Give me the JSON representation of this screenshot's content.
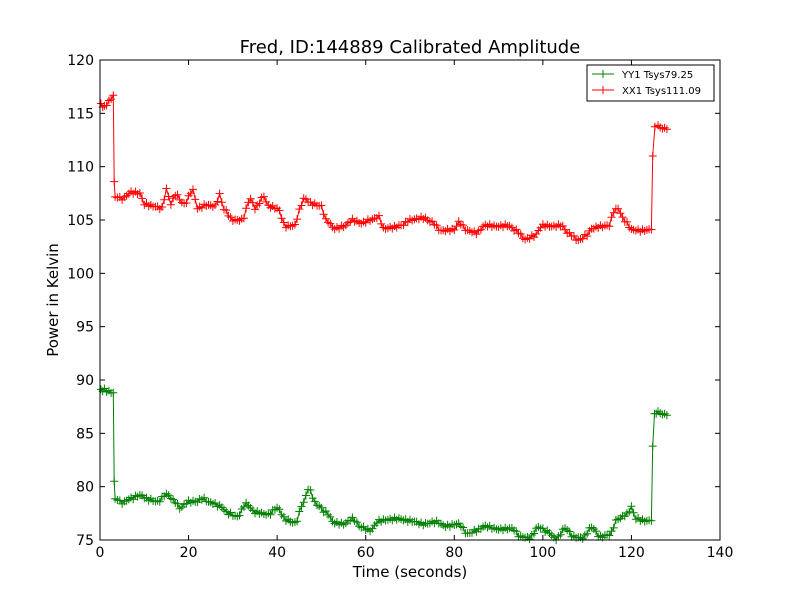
{
  "chart_data": {
    "type": "line",
    "title": "Fred, ID:144889 Calibrated Amplitude",
    "xlabel": "Time (seconds)",
    "ylabel": "Power in Kelvin",
    "xlim": [
      0,
      140
    ],
    "ylim": [
      75,
      120
    ],
    "xticks": [
      0,
      20,
      40,
      60,
      80,
      100,
      120,
      140
    ],
    "yticks": [
      75,
      80,
      85,
      90,
      95,
      100,
      105,
      110,
      115,
      120
    ],
    "grid": false,
    "legend_position": "top-right",
    "marker": "plus",
    "series": [
      {
        "name": "YY1 Tsys79.25",
        "color": "#008000",
        "control_points": [
          [
            0.2,
            89.0
          ],
          [
            1.0,
            89.1
          ],
          [
            2.0,
            88.9
          ],
          [
            3.0,
            88.8
          ],
          [
            3.2,
            80.5
          ],
          [
            3.4,
            78.9
          ],
          [
            5,
            78.5
          ],
          [
            7,
            78.9
          ],
          [
            9,
            79.2
          ],
          [
            11,
            78.8
          ],
          [
            13,
            78.6
          ],
          [
            15,
            79.3
          ],
          [
            17,
            78.6
          ],
          [
            18,
            78.0
          ],
          [
            20,
            78.6
          ],
          [
            22,
            78.6
          ],
          [
            23,
            78.9
          ],
          [
            25,
            78.5
          ],
          [
            27,
            78.2
          ],
          [
            29,
            77.5
          ],
          [
            31,
            77.2
          ],
          [
            33,
            78.4
          ],
          [
            35,
            77.6
          ],
          [
            38,
            77.4
          ],
          [
            40,
            78.0
          ],
          [
            42,
            76.9
          ],
          [
            44,
            76.6
          ],
          [
            46,
            78.5
          ],
          [
            47,
            79.8
          ],
          [
            49,
            78.3
          ],
          [
            51,
            77.6
          ],
          [
            53,
            76.6
          ],
          [
            55,
            76.5
          ],
          [
            57,
            77.0
          ],
          [
            59,
            76.2
          ],
          [
            61,
            75.9
          ],
          [
            63,
            76.8
          ],
          [
            65,
            76.9
          ],
          [
            67,
            77.0
          ],
          [
            70,
            76.8
          ],
          [
            73,
            76.5
          ],
          [
            76,
            76.7
          ],
          [
            78,
            76.3
          ],
          [
            81,
            76.5
          ],
          [
            83,
            75.6
          ],
          [
            85,
            75.9
          ],
          [
            87,
            76.3
          ],
          [
            90,
            76.0
          ],
          [
            93,
            76.1
          ],
          [
            95,
            75.3
          ],
          [
            97,
            75.2
          ],
          [
            99,
            76.2
          ],
          [
            101,
            75.8
          ],
          [
            103,
            75.1
          ],
          [
            105,
            76.1
          ],
          [
            107,
            75.3
          ],
          [
            109,
            75.2
          ],
          [
            111,
            76.2
          ],
          [
            113,
            75.3
          ],
          [
            115,
            75.5
          ],
          [
            117,
            77.0
          ],
          [
            119,
            77.4
          ],
          [
            120,
            78.1
          ],
          [
            121,
            77.0
          ],
          [
            123,
            76.8
          ],
          [
            124.5,
            76.8
          ],
          [
            124.8,
            83.8
          ],
          [
            125.2,
            86.8
          ],
          [
            126,
            87.0
          ],
          [
            127,
            86.8
          ],
          [
            128,
            86.7
          ]
        ]
      },
      {
        "name": "XX1 Tsys111.09",
        "color": "#ff0000",
        "control_points": [
          [
            0.2,
            115.8
          ],
          [
            1.0,
            115.6
          ],
          [
            2.0,
            116.1
          ],
          [
            3.0,
            116.7
          ],
          [
            3.2,
            108.6
          ],
          [
            3.4,
            107.2
          ],
          [
            5,
            107.0
          ],
          [
            7,
            107.6
          ],
          [
            9,
            107.5
          ],
          [
            10,
            106.5
          ],
          [
            12,
            106.3
          ],
          [
            14,
            106.1
          ],
          [
            15,
            107.9
          ],
          [
            16,
            106.5
          ],
          [
            17,
            107.4
          ],
          [
            19,
            106.5
          ],
          [
            21,
            107.8
          ],
          [
            22,
            106.1
          ],
          [
            24,
            106.4
          ],
          [
            26,
            106.3
          ],
          [
            27,
            107.4
          ],
          [
            28,
            106.0
          ],
          [
            30,
            105.0
          ],
          [
            32,
            105.0
          ],
          [
            34,
            107.0
          ],
          [
            35,
            106.1
          ],
          [
            37,
            107.2
          ],
          [
            38,
            106.3
          ],
          [
            40,
            106.1
          ],
          [
            42,
            104.4
          ],
          [
            44,
            104.5
          ],
          [
            45,
            105.9
          ],
          [
            46,
            107.0
          ],
          [
            48,
            106.5
          ],
          [
            50,
            106.3
          ],
          [
            51,
            105.0
          ],
          [
            53,
            104.2
          ],
          [
            55,
            104.4
          ],
          [
            57,
            105.0
          ],
          [
            59,
            104.7
          ],
          [
            61,
            105.0
          ],
          [
            63,
            105.3
          ],
          [
            64,
            104.2
          ],
          [
            66,
            104.3
          ],
          [
            68,
            104.5
          ],
          [
            70,
            105.0
          ],
          [
            73,
            105.2
          ],
          [
            75,
            104.8
          ],
          [
            77,
            104.0
          ],
          [
            80,
            104.1
          ],
          [
            81,
            104.8
          ],
          [
            83,
            104.0
          ],
          [
            85,
            103.8
          ],
          [
            87,
            104.5
          ],
          [
            90,
            104.4
          ],
          [
            92,
            104.5
          ],
          [
            94,
            104.0
          ],
          [
            96,
            103.2
          ],
          [
            98,
            103.5
          ],
          [
            100,
            104.5
          ],
          [
            102,
            104.4
          ],
          [
            104,
            104.5
          ],
          [
            106,
            103.7
          ],
          [
            108,
            103.1
          ],
          [
            110,
            103.6
          ],
          [
            111,
            104.2
          ],
          [
            113,
            104.4
          ],
          [
            115,
            104.5
          ],
          [
            116,
            105.8
          ],
          [
            117,
            106.1
          ],
          [
            118,
            105.2
          ],
          [
            119,
            104.7
          ],
          [
            120,
            104.1
          ],
          [
            122,
            104.0
          ],
          [
            124.5,
            104.1
          ],
          [
            124.8,
            111.0
          ],
          [
            125.3,
            113.8
          ],
          [
            126,
            113.8
          ],
          [
            127,
            113.6
          ],
          [
            128,
            113.5
          ]
        ]
      }
    ]
  }
}
